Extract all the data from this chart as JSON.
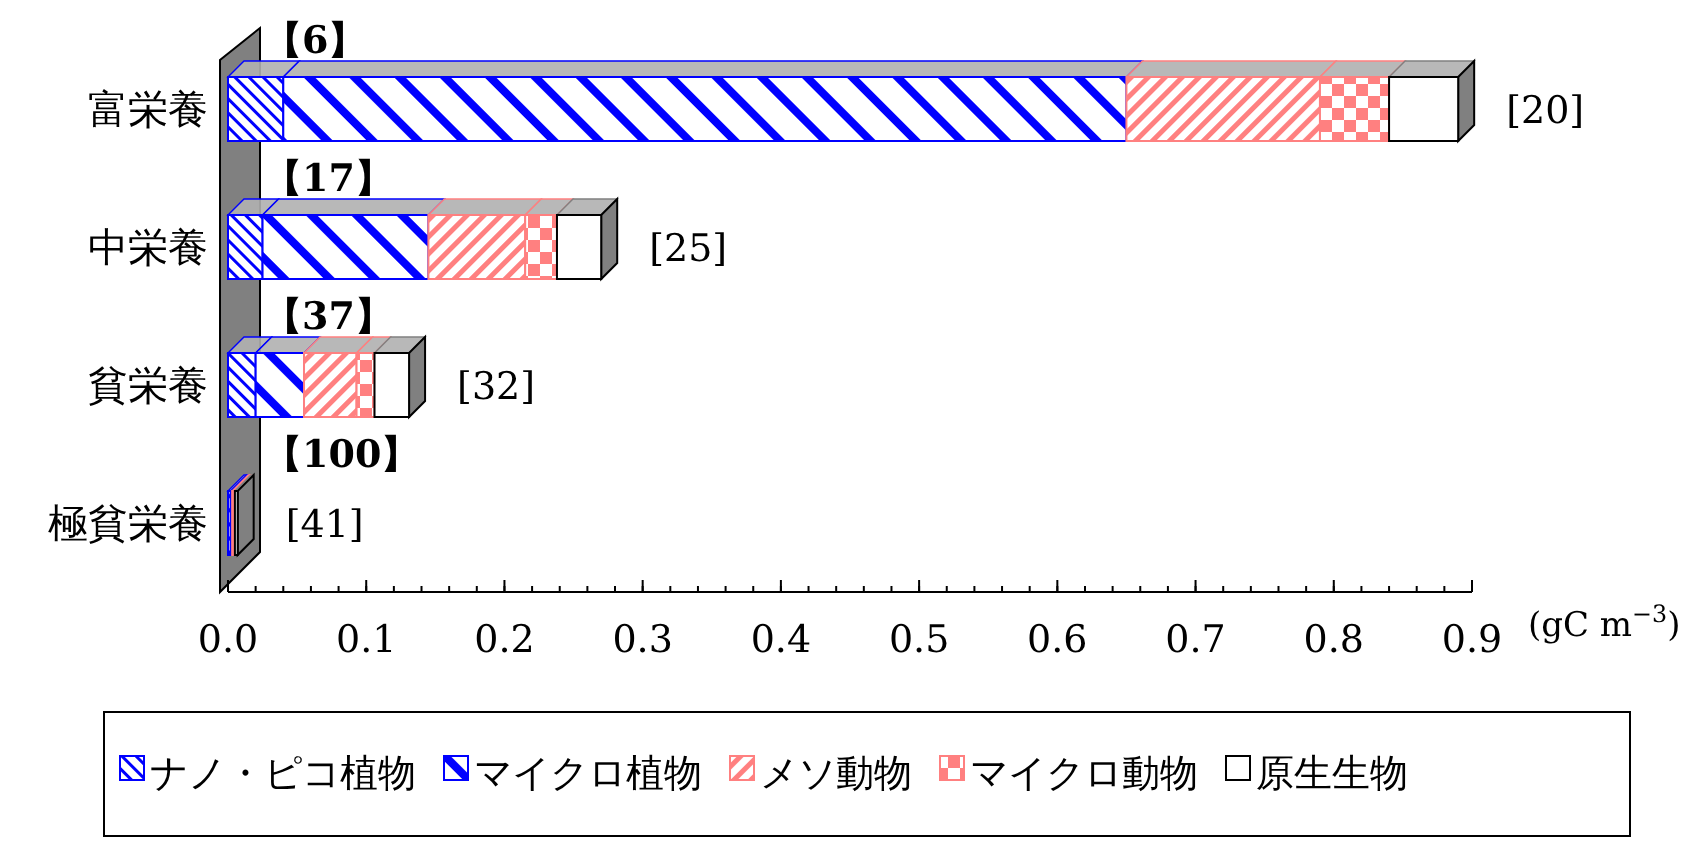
{
  "chart_data": {
    "type": "bar",
    "orientation": "horizontal",
    "stacked": true,
    "categories": [
      "富栄養",
      "中栄養",
      "貧栄養",
      "極貧栄養"
    ],
    "series": [
      {
        "name": "ナノ・ピコ植物",
        "color": "#0000ff",
        "values": [
          0.04,
          0.025,
          0.02,
          0.002
        ]
      },
      {
        "name": "マイクロ植物",
        "color": "#0000ff",
        "values": [
          0.61,
          0.12,
          0.035,
          0.001
        ]
      },
      {
        "name": "メソ動物",
        "color": "#ff8080",
        "values": [
          0.14,
          0.07,
          0.038,
          0.001
        ]
      },
      {
        "name": "マイクロ動物",
        "color": "#ff8080",
        "values": [
          0.05,
          0.023,
          0.013,
          0.001
        ]
      },
      {
        "name": "原生生物",
        "color": "#ffffff",
        "values": [
          0.05,
          0.032,
          0.025,
          0.002
        ]
      }
    ],
    "xlim": [
      0,
      0.9
    ],
    "xticks": [
      {
        "value": 0,
        "label": "0.0"
      },
      {
        "value": 0.1,
        "label": "0.1"
      },
      {
        "value": 0.2,
        "label": "0.2"
      },
      {
        "value": 0.3,
        "label": "0.3"
      },
      {
        "value": 0.4,
        "label": "0.4"
      },
      {
        "value": 0.5,
        "label": "0.5"
      },
      {
        "value": 0.6,
        "label": "0.6"
      },
      {
        "value": 0.7,
        "label": "0.7"
      },
      {
        "value": 0.8,
        "label": "0.8"
      },
      {
        "value": 0.9,
        "label": "0.9"
      }
    ],
    "xlabel": "(gC m$^{−3}$)",
    "annotations": [
      {
        "text": "【6】",
        "x": 0,
        "y": "富栄養"
      },
      {
        "text": "[20]",
        "x": 0.89,
        "y": "富栄養"
      },
      {
        "text": "【17】",
        "x": 0,
        "y": "中栄養"
      },
      {
        "text": "[25]",
        "x": 0.27,
        "y": "中栄養"
      },
      {
        "text": "【37】",
        "x": 0,
        "y": "貧栄養"
      },
      {
        "text": "[32]",
        "x": 0.131,
        "y": "貧栄養"
      },
      {
        "text": "【100】",
        "x": 0,
        "y": "極貧栄養"
      },
      {
        "text": "[41]",
        "x": 0.007,
        "y": "極貧栄養"
      }
    ],
    "legend": "bottom",
    "grid": false
  }
}
